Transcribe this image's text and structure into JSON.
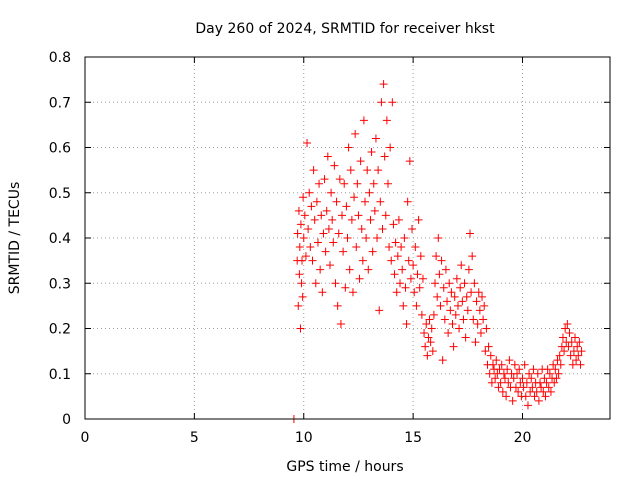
{
  "chart_data": {
    "type": "scatter",
    "title": "Day 260 of 2024, SRMTID for receiver hkst",
    "xlabel": "GPS time / hours",
    "ylabel": "SRMTID / TECUs",
    "xlim": [
      0,
      24
    ],
    "ylim": [
      0,
      0.8
    ],
    "xticks": [
      0,
      5,
      10,
      15,
      20
    ],
    "yticks": [
      0,
      0.1,
      0.2,
      0.3,
      0.4,
      0.5,
      0.6,
      0.7,
      0.8
    ],
    "xtick_labels": [
      "0",
      "5",
      "10",
      "15",
      "20"
    ],
    "ytick_labels": [
      "0",
      "0.1",
      "0.2",
      "0.3",
      "0.4",
      "0.5",
      "0.6",
      "0.7",
      "0.8"
    ],
    "grid": true,
    "marker": "+",
    "series_color": "#ff0000",
    "series": [
      {
        "name": "SRMTID",
        "points": [
          [
            9.55,
            0.0
          ],
          [
            9.7,
            0.35
          ],
          [
            9.72,
            0.41
          ],
          [
            9.75,
            0.25
          ],
          [
            9.78,
            0.46
          ],
          [
            9.8,
            0.32
          ],
          [
            9.82,
            0.38
          ],
          [
            9.85,
            0.2
          ],
          [
            9.87,
            0.43
          ],
          [
            9.9,
            0.3
          ],
          [
            9.92,
            0.35
          ],
          [
            9.95,
            0.27
          ],
          [
            9.97,
            0.49
          ],
          [
            10.0,
            0.4
          ],
          [
            10.05,
            0.45
          ],
          [
            10.1,
            0.36
          ],
          [
            10.15,
            0.61
          ],
          [
            10.2,
            0.42
          ],
          [
            10.25,
            0.5
          ],
          [
            10.3,
            0.38
          ],
          [
            10.35,
            0.47
          ],
          [
            10.4,
            0.35
          ],
          [
            10.45,
            0.55
          ],
          [
            10.5,
            0.44
          ],
          [
            10.55,
            0.3
          ],
          [
            10.6,
            0.48
          ],
          [
            10.65,
            0.39
          ],
          [
            10.7,
            0.52
          ],
          [
            10.75,
            0.33
          ],
          [
            10.8,
            0.45
          ],
          [
            10.85,
            0.28
          ],
          [
            10.9,
            0.41
          ],
          [
            10.95,
            0.53
          ],
          [
            11.0,
            0.37
          ],
          [
            11.05,
            0.46
          ],
          [
            11.1,
            0.58
          ],
          [
            11.15,
            0.42
          ],
          [
            11.2,
            0.34
          ],
          [
            11.25,
            0.5
          ],
          [
            11.3,
            0.44
          ],
          [
            11.35,
            0.39
          ],
          [
            11.4,
            0.56
          ],
          [
            11.45,
            0.3
          ],
          [
            11.5,
            0.48
          ],
          [
            11.55,
            0.25
          ],
          [
            11.6,
            0.41
          ],
          [
            11.65,
            0.53
          ],
          [
            11.7,
            0.21
          ],
          [
            11.75,
            0.45
          ],
          [
            11.8,
            0.37
          ],
          [
            11.85,
            0.52
          ],
          [
            11.9,
            0.29
          ],
          [
            11.95,
            0.47
          ],
          [
            12.0,
            0.4
          ],
          [
            12.05,
            0.6
          ],
          [
            12.1,
            0.33
          ],
          [
            12.15,
            0.55
          ],
          [
            12.2,
            0.44
          ],
          [
            12.25,
            0.28
          ],
          [
            12.3,
            0.49
          ],
          [
            12.35,
            0.63
          ],
          [
            12.4,
            0.38
          ],
          [
            12.45,
            0.52
          ],
          [
            12.5,
            0.45
          ],
          [
            12.55,
            0.31
          ],
          [
            12.6,
            0.57
          ],
          [
            12.65,
            0.42
          ],
          [
            12.7,
            0.35
          ],
          [
            12.75,
            0.66
          ],
          [
            12.8,
            0.48
          ],
          [
            12.85,
            0.4
          ],
          [
            12.9,
            0.55
          ],
          [
            12.95,
            0.33
          ],
          [
            13.0,
            0.5
          ],
          [
            13.05,
            0.44
          ],
          [
            13.1,
            0.59
          ],
          [
            13.15,
            0.37
          ],
          [
            13.2,
            0.52
          ],
          [
            13.25,
            0.46
          ],
          [
            13.3,
            0.62
          ],
          [
            13.35,
            0.4
          ],
          [
            13.4,
            0.55
          ],
          [
            13.45,
            0.24
          ],
          [
            13.5,
            0.48
          ],
          [
            13.55,
            0.7
          ],
          [
            13.6,
            0.42
          ],
          [
            13.65,
            0.74
          ],
          [
            13.7,
            0.58
          ],
          [
            13.75,
            0.45
          ],
          [
            13.8,
            0.66
          ],
          [
            13.85,
            0.52
          ],
          [
            13.9,
            0.38
          ],
          [
            13.95,
            0.6
          ],
          [
            14.0,
            0.35
          ],
          [
            14.05,
            0.7
          ],
          [
            14.1,
            0.43
          ],
          [
            14.15,
            0.32
          ],
          [
            14.2,
            0.39
          ],
          [
            14.25,
            0.28
          ],
          [
            14.3,
            0.36
          ],
          [
            14.35,
            0.44
          ],
          [
            14.4,
            0.3
          ],
          [
            14.45,
            0.38
          ],
          [
            14.5,
            0.33
          ],
          [
            14.55,
            0.25
          ],
          [
            14.6,
            0.4
          ],
          [
            14.65,
            0.29
          ],
          [
            14.7,
            0.21
          ],
          [
            14.75,
            0.48
          ],
          [
            14.8,
            0.35
          ],
          [
            14.85,
            0.57
          ],
          [
            14.9,
            0.31
          ],
          [
            14.95,
            0.42
          ],
          [
            15.0,
            0.34
          ],
          [
            15.05,
            0.28
          ],
          [
            15.1,
            0.38
          ],
          [
            15.15,
            0.25
          ],
          [
            15.2,
            0.32
          ],
          [
            15.25,
            0.44
          ],
          [
            15.3,
            0.29
          ],
          [
            15.35,
            0.36
          ],
          [
            15.4,
            0.23
          ],
          [
            15.45,
            0.31
          ],
          [
            15.5,
            0.19
          ],
          [
            15.55,
            0.16
          ],
          [
            15.6,
            0.21
          ],
          [
            15.65,
            0.14
          ],
          [
            15.7,
            0.18
          ],
          [
            15.75,
            0.22
          ],
          [
            15.8,
            0.17
          ],
          [
            15.85,
            0.2
          ],
          [
            15.9,
            0.15
          ],
          [
            15.95,
            0.23
          ],
          [
            16.0,
            0.3
          ],
          [
            16.05,
            0.36
          ],
          [
            16.1,
            0.27
          ],
          [
            16.15,
            0.4
          ],
          [
            16.2,
            0.32
          ],
          [
            16.25,
            0.25
          ],
          [
            16.3,
            0.35
          ],
          [
            16.35,
            0.13
          ],
          [
            16.4,
            0.29
          ],
          [
            16.45,
            0.22
          ],
          [
            16.5,
            0.33
          ],
          [
            16.55,
            0.26
          ],
          [
            16.6,
            0.19
          ],
          [
            16.65,
            0.3
          ],
          [
            16.7,
            0.24
          ],
          [
            16.75,
            0.28
          ],
          [
            16.8,
            0.21
          ],
          [
            16.85,
            0.16
          ],
          [
            16.9,
            0.27
          ],
          [
            16.95,
            0.23
          ],
          [
            17.0,
            0.31
          ],
          [
            17.05,
            0.25
          ],
          [
            17.1,
            0.2
          ],
          [
            17.15,
            0.29
          ],
          [
            17.2,
            0.34
          ],
          [
            17.25,
            0.26
          ],
          [
            17.3,
            0.22
          ],
          [
            17.35,
            0.3
          ],
          [
            17.4,
            0.18
          ],
          [
            17.45,
            0.27
          ],
          [
            17.5,
            0.24
          ],
          [
            17.55,
            0.33
          ],
          [
            17.6,
            0.41
          ],
          [
            17.65,
            0.28
          ],
          [
            17.7,
            0.36
          ],
          [
            17.75,
            0.22
          ],
          [
            17.8,
            0.3
          ],
          [
            17.85,
            0.17
          ],
          [
            17.9,
            0.26
          ],
          [
            17.95,
            0.21
          ],
          [
            18.0,
            0.28
          ],
          [
            18.05,
            0.24
          ],
          [
            18.1,
            0.19
          ],
          [
            18.15,
            0.27
          ],
          [
            18.2,
            0.22
          ],
          [
            18.25,
            0.25
          ],
          [
            18.3,
            0.15
          ],
          [
            18.35,
            0.2
          ],
          [
            18.4,
            0.12
          ],
          [
            18.45,
            0.16
          ],
          [
            18.5,
            0.1
          ],
          [
            18.55,
            0.14
          ],
          [
            18.6,
            0.08
          ],
          [
            18.65,
            0.12
          ],
          [
            18.7,
            0.11
          ],
          [
            18.75,
            0.09
          ],
          [
            18.8,
            0.13
          ],
          [
            18.85,
            0.1
          ],
          [
            18.9,
            0.07
          ],
          [
            18.95,
            0.11
          ],
          [
            19.0,
            0.08
          ],
          [
            19.05,
            0.12
          ],
          [
            19.1,
            0.06
          ],
          [
            19.15,
            0.1
          ],
          [
            19.2,
            0.09
          ],
          [
            19.25,
            0.05
          ],
          [
            19.3,
            0.11
          ],
          [
            19.35,
            0.08
          ],
          [
            19.4,
            0.13
          ],
          [
            19.45,
            0.07
          ],
          [
            19.5,
            0.1
          ],
          [
            19.55,
            0.04
          ],
          [
            19.6,
            0.09
          ],
          [
            19.65,
            0.12
          ],
          [
            19.7,
            0.07
          ],
          [
            19.75,
            0.1
          ],
          [
            19.8,
            0.06
          ],
          [
            19.85,
            0.11
          ],
          [
            19.9,
            0.08
          ],
          [
            19.95,
            0.05
          ],
          [
            20.0,
            0.09
          ],
          [
            20.05,
            0.07
          ],
          [
            20.1,
            0.12
          ],
          [
            20.15,
            0.05
          ],
          [
            20.2,
            0.08
          ],
          [
            20.25,
            0.03
          ],
          [
            20.3,
            0.1
          ],
          [
            20.35,
            0.06
          ],
          [
            20.4,
            0.09
          ],
          [
            20.45,
            0.07
          ],
          [
            20.5,
            0.11
          ],
          [
            20.55,
            0.05
          ],
          [
            20.6,
            0.08
          ],
          [
            20.65,
            0.06
          ],
          [
            20.7,
            0.1
          ],
          [
            20.75,
            0.04
          ],
          [
            20.8,
            0.08
          ],
          [
            20.85,
            0.07
          ],
          [
            20.9,
            0.11
          ],
          [
            20.95,
            0.06
          ],
          [
            21.0,
            0.09
          ],
          [
            21.05,
            0.05
          ],
          [
            21.1,
            0.08
          ],
          [
            21.15,
            0.11
          ],
          [
            21.2,
            0.07
          ],
          [
            21.25,
            0.1
          ],
          [
            21.3,
            0.06
          ],
          [
            21.35,
            0.09
          ],
          [
            21.4,
            0.12
          ],
          [
            21.45,
            0.08
          ],
          [
            21.5,
            0.11
          ],
          [
            21.55,
            0.09
          ],
          [
            21.6,
            0.13
          ],
          [
            21.65,
            0.1
          ],
          [
            21.7,
            0.14
          ],
          [
            21.75,
            0.12
          ],
          [
            21.8,
            0.16
          ],
          [
            21.85,
            0.18
          ],
          [
            21.9,
            0.15
          ],
          [
            21.95,
            0.2
          ],
          [
            22.0,
            0.17
          ],
          [
            22.05,
            0.21
          ],
          [
            22.1,
            0.16
          ],
          [
            22.15,
            0.19
          ],
          [
            22.2,
            0.14
          ],
          [
            22.25,
            0.17
          ],
          [
            22.3,
            0.12
          ],
          [
            22.35,
            0.15
          ],
          [
            22.4,
            0.18
          ],
          [
            22.45,
            0.13
          ],
          [
            22.5,
            0.16
          ],
          [
            22.55,
            0.14
          ],
          [
            22.6,
            0.17
          ],
          [
            22.65,
            0.12
          ],
          [
            22.7,
            0.15
          ]
        ]
      }
    ]
  }
}
